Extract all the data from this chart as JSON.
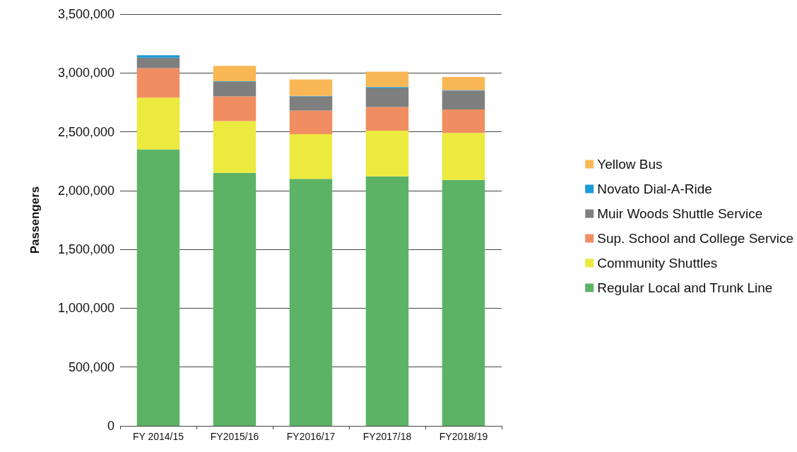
{
  "chart_data": {
    "type": "bar",
    "stacked": true,
    "ylabel": "Passengers",
    "categories": [
      "FY 2014/15",
      "FY2015/16",
      "FY2016/17",
      "FY2017/18",
      "FY2018/19"
    ],
    "series": [
      {
        "name": "Regular Local and Trunk Line",
        "color": "#5cb366",
        "values": [
          2350000,
          2150000,
          2100000,
          2120000,
          2090000
        ]
      },
      {
        "name": "Community Shuttles",
        "color": "#ecea3e",
        "values": [
          440000,
          440000,
          380000,
          390000,
          400000
        ]
      },
      {
        "name": "Sup. School and College Service",
        "color": "#f08e62",
        "values": [
          250000,
          210000,
          200000,
          200000,
          200000
        ]
      },
      {
        "name": "Muir Woods Shuttle Service",
        "color": "#7f7f7f",
        "values": [
          90000,
          125000,
          120000,
          160000,
          160000
        ]
      },
      {
        "name": "Novato Dial-A-Ride",
        "color": "#1a9ad6",
        "values": [
          20000,
          5000,
          5000,
          10000,
          5000
        ]
      },
      {
        "name": "Yellow Bus",
        "color": "#f9b755",
        "values": [
          0,
          130000,
          140000,
          130000,
          110000
        ]
      }
    ],
    "ylim": [
      0,
      3500000
    ],
    "yticks": [
      0,
      {
        "value": 500000,
        "label": "500,000"
      },
      {
        "value": 1000000,
        "label": "1,000,000"
      },
      {
        "value": 1500000,
        "label": "1,500,000"
      },
      {
        "value": 2000000,
        "label": "2,000,000"
      },
      {
        "value": 2500000,
        "label": "2,500,000"
      },
      {
        "value": 3000000,
        "label": "3,000,000"
      },
      {
        "value": 3500000,
        "label": "3,500,000"
      }
    ],
    "grid": "y",
    "legend": "right"
  }
}
